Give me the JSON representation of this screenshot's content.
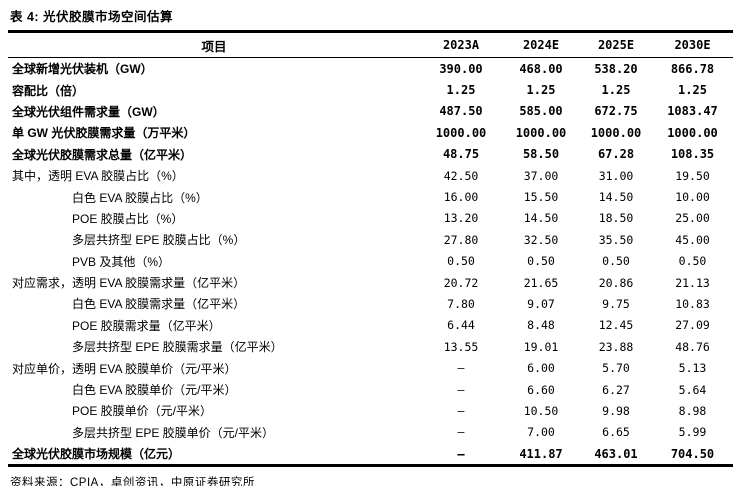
{
  "title": "表 4: 光伏胶膜市场空间估算",
  "source": "资料来源：CPIA，卓创资讯，中原证券研究所",
  "table": {
    "columns": [
      "项目",
      "2023A",
      "2024E",
      "2025E",
      "2030E"
    ],
    "rows": [
      {
        "label": "全球新增光伏装机（GW）",
        "values": [
          "390.00",
          "468.00",
          "538.20",
          "866.78"
        ],
        "bold": true,
        "indent": 0
      },
      {
        "label": "容配比（倍）",
        "values": [
          "1.25",
          "1.25",
          "1.25",
          "1.25"
        ],
        "bold": true,
        "indent": 0
      },
      {
        "label": "全球光伏组件需求量（GW）",
        "values": [
          "487.50",
          "585.00",
          "672.75",
          "1083.47"
        ],
        "bold": true,
        "indent": 0
      },
      {
        "label": "单 GW 光伏胶膜需求量（万平米）",
        "values": [
          "1000.00",
          "1000.00",
          "1000.00",
          "1000.00"
        ],
        "bold": true,
        "indent": 0
      },
      {
        "label": "全球光伏胶膜需求总量（亿平米）",
        "values": [
          "48.75",
          "58.50",
          "67.28",
          "108.35"
        ],
        "bold": true,
        "indent": 0
      },
      {
        "label": "其中，透明 EVA 胶膜占比（%）",
        "values": [
          "42.50",
          "37.00",
          "31.00",
          "19.50"
        ],
        "bold": false,
        "indent": 0
      },
      {
        "label": "白色 EVA 胶膜占比（%）",
        "values": [
          "16.00",
          "15.50",
          "14.50",
          "10.00"
        ],
        "bold": false,
        "indent": 1
      },
      {
        "label": "POE 胶膜占比（%）",
        "values": [
          "13.20",
          "14.50",
          "18.50",
          "25.00"
        ],
        "bold": false,
        "indent": 1
      },
      {
        "label": "多层共挤型 EPE 胶膜占比（%）",
        "values": [
          "27.80",
          "32.50",
          "35.50",
          "45.00"
        ],
        "bold": false,
        "indent": 1
      },
      {
        "label": "PVB 及其他（%）",
        "values": [
          "0.50",
          "0.50",
          "0.50",
          "0.50"
        ],
        "bold": false,
        "indent": 1
      },
      {
        "label": "对应需求，透明 EVA 胶膜需求量（亿平米）",
        "values": [
          "20.72",
          "21.65",
          "20.86",
          "21.13"
        ],
        "bold": false,
        "indent": 0
      },
      {
        "label": "白色 EVA 胶膜需求量（亿平米）",
        "values": [
          "7.80",
          "9.07",
          "9.75",
          "10.83"
        ],
        "bold": false,
        "indent": 1
      },
      {
        "label": "POE 胶膜需求量（亿平米）",
        "values": [
          "6.44",
          "8.48",
          "12.45",
          "27.09"
        ],
        "bold": false,
        "indent": 1
      },
      {
        "label": "多层共挤型 EPE 胶膜需求量（亿平米）",
        "values": [
          "13.55",
          "19.01",
          "23.88",
          "48.76"
        ],
        "bold": false,
        "indent": 1
      },
      {
        "label": "对应单价，透明 EVA 胶膜单价（元/平米）",
        "values": [
          "–",
          "6.00",
          "5.70",
          "5.13"
        ],
        "bold": false,
        "indent": 0
      },
      {
        "label": "白色 EVA 胶膜单价（元/平米）",
        "values": [
          "–",
          "6.60",
          "6.27",
          "5.64"
        ],
        "bold": false,
        "indent": 1
      },
      {
        "label": "POE 胶膜单价（元/平米）",
        "values": [
          "–",
          "10.50",
          "9.98",
          "8.98"
        ],
        "bold": false,
        "indent": 1
      },
      {
        "label": "多层共挤型 EPE 胶膜单价（元/平米）",
        "values": [
          "–",
          "7.00",
          "6.65",
          "5.99"
        ],
        "bold": false,
        "indent": 1
      },
      {
        "label": "全球光伏胶膜市场规模（亿元）",
        "values": [
          "–",
          "411.87",
          "463.01",
          "704.50"
        ],
        "bold": true,
        "indent": 0
      }
    ]
  }
}
